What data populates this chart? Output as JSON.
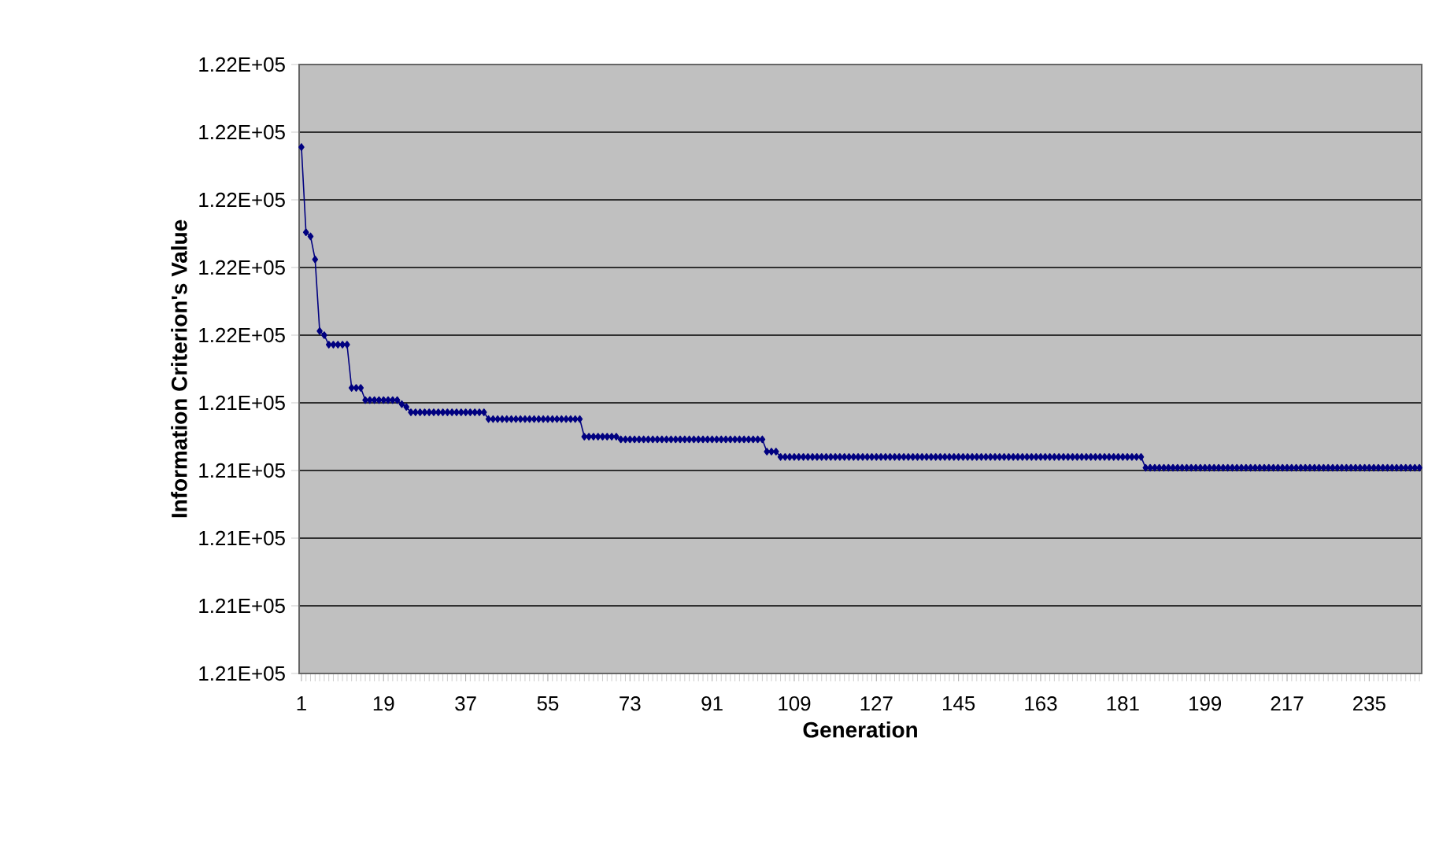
{
  "chart_data": {
    "type": "line",
    "xlabel": "Generation",
    "ylabel": "Information Criterion's Value",
    "categories": [
      "1",
      null,
      null,
      null,
      null,
      null,
      null,
      null,
      null,
      null,
      null,
      null,
      null,
      null,
      null,
      null,
      null,
      null,
      "19",
      null,
      null,
      null,
      null,
      null,
      null,
      null,
      null,
      null,
      null,
      null,
      null,
      null,
      null,
      null,
      null,
      null,
      "37",
      null,
      null,
      null,
      null,
      null,
      null,
      null,
      null,
      null,
      null,
      null,
      null,
      null,
      null,
      null,
      null,
      null,
      "55",
      null,
      null,
      null,
      null,
      null,
      null,
      null,
      null,
      null,
      null,
      null,
      null,
      null,
      null,
      null,
      null,
      null,
      "73",
      null,
      null,
      null,
      null,
      null,
      null,
      null,
      null,
      null,
      null,
      null,
      null,
      null,
      null,
      null,
      null,
      null,
      "91",
      null,
      null,
      null,
      null,
      null,
      null,
      null,
      null,
      null,
      null,
      null,
      null,
      null,
      null,
      null,
      null,
      null,
      "109",
      null,
      null,
      null,
      null,
      null,
      null,
      null,
      null,
      null,
      null,
      null,
      null,
      null,
      null,
      null,
      null,
      null,
      "127",
      null,
      null,
      null,
      null,
      null,
      null,
      null,
      null,
      null,
      null,
      null,
      null,
      null,
      null,
      null,
      null,
      null,
      "145",
      null,
      null,
      null,
      null,
      null,
      null,
      null,
      null,
      null,
      null,
      null,
      null,
      null,
      null,
      null,
      null,
      null,
      "163",
      null,
      null,
      null,
      null,
      null,
      null,
      null,
      null,
      null,
      null,
      null,
      null,
      null,
      null,
      null,
      null,
      null,
      "181",
      null,
      null,
      null,
      null,
      null,
      null,
      null,
      null,
      null,
      null,
      null,
      null,
      null,
      null,
      null,
      null,
      null,
      "199",
      null,
      null,
      null,
      null,
      null,
      null,
      null,
      null,
      null,
      null,
      null,
      null,
      null,
      null,
      null,
      null,
      null,
      "217",
      null,
      null,
      null,
      null,
      null,
      null,
      null,
      null,
      null,
      null,
      null,
      null,
      null,
      null,
      null,
      null,
      null,
      "235",
      null,
      null,
      null,
      null,
      null,
      null,
      null,
      null,
      null,
      null,
      null
    ],
    "values": [
      121639,
      121576,
      121573,
      121556,
      121503,
      121500,
      121493,
      121493,
      121493,
      121493,
      121493,
      121461,
      121461,
      121461,
      121452,
      121452,
      121452,
      121452,
      121452,
      121452,
      121452,
      121452,
      121449,
      121447,
      121443,
      121443,
      121443,
      121443,
      121443,
      121443,
      121443,
      121443,
      121443,
      121443,
      121443,
      121443,
      121443,
      121443,
      121443,
      121443,
      121443,
      121438,
      121438,
      121438,
      121438,
      121438,
      121438,
      121438,
      121438,
      121438,
      121438,
      121438,
      121438,
      121438,
      121438,
      121438,
      121438,
      121438,
      121438,
      121438,
      121438,
      121438,
      121425,
      121425,
      121425,
      121425,
      121425,
      121425,
      121425,
      121425,
      121423,
      121423,
      121423,
      121423,
      121423,
      121423,
      121423,
      121423,
      121423,
      121423,
      121423,
      121423,
      121423,
      121423,
      121423,
      121423,
      121423,
      121423,
      121423,
      121423,
      121423,
      121423,
      121423,
      121423,
      121423,
      121423,
      121423,
      121423,
      121423,
      121423,
      121423,
      121423,
      121414,
      121414,
      121414,
      121410,
      121410,
      121410,
      121410,
      121410,
      121410,
      121410,
      121410,
      121410,
      121410,
      121410,
      121410,
      121410,
      121410,
      121410,
      121410,
      121410,
      121410,
      121410,
      121410,
      121410,
      121410,
      121410,
      121410,
      121410,
      121410,
      121410,
      121410,
      121410,
      121410,
      121410,
      121410,
      121410,
      121410,
      121410,
      121410,
      121410,
      121410,
      121410,
      121410,
      121410,
      121410,
      121410,
      121410,
      121410,
      121410,
      121410,
      121410,
      121410,
      121410,
      121410,
      121410,
      121410,
      121410,
      121410,
      121410,
      121410,
      121410,
      121410,
      121410,
      121410,
      121410,
      121410,
      121410,
      121410,
      121410,
      121410,
      121410,
      121410,
      121410,
      121410,
      121410,
      121410,
      121410,
      121410,
      121410,
      121410,
      121410,
      121410,
      121410,
      121402,
      121402,
      121402,
      121402,
      121402,
      121402,
      121402,
      121402,
      121402,
      121402,
      121402,
      121402,
      121402,
      121402,
      121402,
      121402,
      121402,
      121402,
      121402,
      121402,
      121402,
      121402,
      121402,
      121402,
      121402,
      121402,
      121402,
      121402,
      121402,
      121402,
      121402,
      121402,
      121402,
      121402,
      121402,
      121402,
      121402,
      121402,
      121402,
      121402,
      121402,
      121402,
      121402,
      121402,
      121402,
      121402,
      121402,
      121402,
      121402,
      121402,
      121402,
      121402,
      121402,
      121402,
      121402,
      121402,
      121402,
      121402,
      121402,
      121402,
      121402
    ],
    "color": "#000080",
    "marker": "diamond",
    "grid": "y",
    "ylim": [
      121250,
      121700
    ],
    "yticks": [
      {
        "value": 121250,
        "label": "1.21E+05"
      },
      {
        "value": 121300,
        "label": "1.21E+05"
      },
      {
        "value": 121350,
        "label": "1.21E+05"
      },
      {
        "value": 121400,
        "label": "1.21E+05"
      },
      {
        "value": 121450,
        "label": "1.21E+05"
      },
      {
        "value": 121500,
        "label": "1.22E+05"
      },
      {
        "value": 121550,
        "label": "1.22E+05"
      },
      {
        "value": 121600,
        "label": "1.22E+05"
      },
      {
        "value": 121650,
        "label": "1.22E+05"
      },
      {
        "value": 121700,
        "label": "1.22E+05"
      }
    ]
  }
}
